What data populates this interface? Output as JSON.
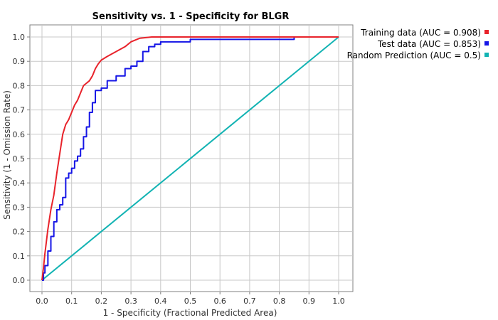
{
  "chart_data": {
    "type": "line",
    "title": "Sensitivity vs. 1 - Specificity for BLGR",
    "xlabel": "1 - Specificity  (Fractional Predicted Area)",
    "ylabel": "Sensitivity  (1 - Omission Rate)",
    "xlim": [
      0,
      1
    ],
    "ylim": [
      0,
      1
    ],
    "xticks": [
      "0.0",
      "0.1",
      "0.2",
      "0.3",
      "0.4",
      "0.5",
      "0.6",
      "0.7",
      "0.8",
      "0.9",
      "1.0"
    ],
    "yticks": [
      "0.0",
      "0.1",
      "0.2",
      "0.3",
      "0.4",
      "0.5",
      "0.6",
      "0.7",
      "0.8",
      "0.9",
      "1.0"
    ],
    "grid": true,
    "legend_position": "top-right-outside",
    "series": [
      {
        "name": "Training data (AUC = 0.908)",
        "color": "#e8232b",
        "x": [
          0,
          0.005,
          0.01,
          0.02,
          0.03,
          0.04,
          0.05,
          0.06,
          0.07,
          0.08,
          0.09,
          0.1,
          0.11,
          0.12,
          0.13,
          0.14,
          0.15,
          0.16,
          0.17,
          0.18,
          0.19,
          0.2,
          0.22,
          0.25,
          0.28,
          0.3,
          0.33,
          0.37,
          0.45,
          0.6,
          0.8,
          1.0
        ],
        "y": [
          0,
          0.05,
          0.11,
          0.21,
          0.29,
          0.35,
          0.44,
          0.52,
          0.6,
          0.64,
          0.66,
          0.69,
          0.72,
          0.74,
          0.77,
          0.8,
          0.81,
          0.82,
          0.84,
          0.87,
          0.89,
          0.905,
          0.92,
          0.94,
          0.96,
          0.98,
          0.995,
          1.0,
          1.0,
          1.0,
          1.0,
          1.0
        ]
      },
      {
        "name": "Test data (AUC = 0.853)",
        "color": "#1515e6",
        "x": [
          0,
          0.005,
          0.01,
          0.02,
          0.03,
          0.04,
          0.05,
          0.06,
          0.07,
          0.08,
          0.09,
          0.1,
          0.11,
          0.12,
          0.13,
          0.14,
          0.15,
          0.16,
          0.17,
          0.18,
          0.2,
          0.22,
          0.25,
          0.28,
          0.3,
          0.32,
          0.34,
          0.36,
          0.38,
          0.4,
          0.5,
          0.7,
          0.84,
          0.85,
          1.0
        ],
        "y": [
          0,
          0.03,
          0.06,
          0.12,
          0.18,
          0.24,
          0.29,
          0.31,
          0.34,
          0.42,
          0.44,
          0.46,
          0.49,
          0.51,
          0.54,
          0.59,
          0.63,
          0.69,
          0.73,
          0.78,
          0.79,
          0.82,
          0.84,
          0.87,
          0.88,
          0.9,
          0.94,
          0.96,
          0.97,
          0.98,
          0.99,
          0.99,
          0.99,
          1.0,
          1.0
        ]
      },
      {
        "name": "Random Prediction (AUC = 0.5)",
        "color": "#12b3b3",
        "x": [
          0,
          1
        ],
        "y": [
          0,
          1
        ]
      }
    ]
  }
}
